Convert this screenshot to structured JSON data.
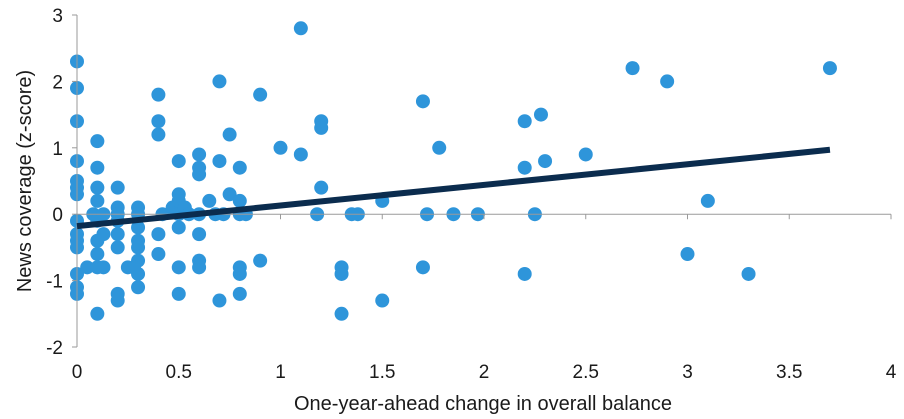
{
  "chart_data": {
    "type": "scatter",
    "title": "",
    "xlabel": "One-year-ahead change in overall balance",
    "ylabel": "News coverage (z-score)",
    "xlim": [
      0,
      4
    ],
    "ylim": [
      -2,
      3
    ],
    "xticks": [
      0,
      0.5,
      1,
      1.5,
      2,
      2.5,
      3,
      3.5,
      4
    ],
    "yticks": [
      -2,
      -1,
      0,
      1,
      2,
      3
    ],
    "grid": false,
    "colors": {
      "points": "#2E95DA",
      "trend": "#0B2C4E",
      "axis": "#9A9A9A"
    },
    "trendline": {
      "x": [
        0,
        3.7
      ],
      "y": [
        -0.18,
        0.97
      ]
    },
    "points": [
      [
        0,
        2.3
      ],
      [
        0,
        1.9
      ],
      [
        0,
        1.4
      ],
      [
        0,
        0.8
      ],
      [
        0,
        0.5
      ],
      [
        0,
        0.4
      ],
      [
        0,
        0.3
      ],
      [
        0,
        -0.1
      ],
      [
        0,
        -0.3
      ],
      [
        0,
        -0.4
      ],
      [
        0,
        -0.5
      ],
      [
        0,
        -0.9
      ],
      [
        0,
        -1.1
      ],
      [
        0,
        -1.2
      ],
      [
        0.05,
        -0.8
      ],
      [
        0.1,
        1.1
      ],
      [
        0.1,
        0.7
      ],
      [
        0.1,
        0.4
      ],
      [
        0.1,
        0.2
      ],
      [
        0.08,
        0
      ],
      [
        0.1,
        -0.1
      ],
      [
        0.1,
        -0.4
      ],
      [
        0.1,
        -0.6
      ],
      [
        0.1,
        -0.8
      ],
      [
        0.1,
        -1.5
      ],
      [
        0.13,
        0
      ],
      [
        0.13,
        -0.3
      ],
      [
        0.13,
        -0.8
      ],
      [
        0.2,
        0.4
      ],
      [
        0.2,
        0.1
      ],
      [
        0.2,
        0
      ],
      [
        0.2,
        -0.1
      ],
      [
        0.2,
        -0.3
      ],
      [
        0.2,
        -0.5
      ],
      [
        0.2,
        -1.2
      ],
      [
        0.2,
        -1.3
      ],
      [
        0.25,
        -0.8
      ],
      [
        0.3,
        0.1
      ],
      [
        0.3,
        0
      ],
      [
        0.3,
        -0.2
      ],
      [
        0.3,
        -0.4
      ],
      [
        0.3,
        -0.5
      ],
      [
        0.3,
        -0.7
      ],
      [
        0.3,
        -0.9
      ],
      [
        0.3,
        -1.1
      ],
      [
        0.28,
        -0.8
      ],
      [
        0.4,
        1.8
      ],
      [
        0.4,
        1.4
      ],
      [
        0.4,
        1.2
      ],
      [
        0.4,
        -0.3
      ],
      [
        0.4,
        -0.6
      ],
      [
        0.42,
        0
      ],
      [
        0.47,
        0.1
      ],
      [
        0.5,
        0.8
      ],
      [
        0.5,
        0.3
      ],
      [
        0.5,
        0.2
      ],
      [
        0.5,
        0
      ],
      [
        0.5,
        -0.2
      ],
      [
        0.5,
        -0.8
      ],
      [
        0.5,
        -1.2
      ],
      [
        0.53,
        0.1
      ],
      [
        0.55,
        0
      ],
      [
        0.6,
        0.9
      ],
      [
        0.6,
        0.7
      ],
      [
        0.6,
        0.6
      ],
      [
        0.6,
        0
      ],
      [
        0.6,
        -0.3
      ],
      [
        0.6,
        -0.7
      ],
      [
        0.6,
        -0.8
      ],
      [
        0.65,
        0.2
      ],
      [
        0.68,
        0
      ],
      [
        0.7,
        2
      ],
      [
        0.7,
        0.8
      ],
      [
        0.7,
        -1.3
      ],
      [
        0.72,
        0
      ],
      [
        0.75,
        1.2
      ],
      [
        0.75,
        0.3
      ],
      [
        0.8,
        0.7
      ],
      [
        0.8,
        0.2
      ],
      [
        0.8,
        0
      ],
      [
        0.8,
        -0.8
      ],
      [
        0.8,
        -0.9
      ],
      [
        0.8,
        -1.2
      ],
      [
        0.83,
        0
      ],
      [
        0.9,
        1.8
      ],
      [
        0.9,
        -0.7
      ],
      [
        1,
        1
      ],
      [
        1.1,
        2.8
      ],
      [
        1.1,
        0.9
      ],
      [
        1.2,
        1.4
      ],
      [
        1.2,
        1.3
      ],
      [
        1.2,
        0.4
      ],
      [
        1.18,
        0
      ],
      [
        1.3,
        -0.8
      ],
      [
        1.3,
        -0.9
      ],
      [
        1.3,
        -1.5
      ],
      [
        1.35,
        0
      ],
      [
        1.38,
        0
      ],
      [
        1.5,
        0.2
      ],
      [
        1.5,
        -1.3
      ],
      [
        1.7,
        1.7
      ],
      [
        1.7,
        -0.8
      ],
      [
        1.72,
        0
      ],
      [
        1.78,
        1
      ],
      [
        1.85,
        0
      ],
      [
        1.97,
        0
      ],
      [
        2.2,
        1.4
      ],
      [
        2.2,
        0.7
      ],
      [
        2.2,
        -0.9
      ],
      [
        2.25,
        0
      ],
      [
        2.28,
        1.5
      ],
      [
        2.3,
        0.8
      ],
      [
        2.5,
        0.9
      ],
      [
        2.73,
        2.2
      ],
      [
        2.9,
        2
      ],
      [
        3,
        -0.6
      ],
      [
        3.1,
        0.2
      ],
      [
        3.3,
        -0.9
      ],
      [
        3.7,
        2.2
      ]
    ]
  }
}
